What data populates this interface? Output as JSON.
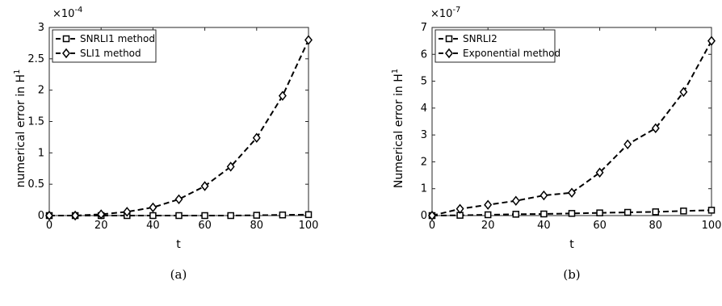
{
  "chart_data": [
    {
      "type": "line",
      "caption": "(a)",
      "xlabel": "t",
      "ylabel": "numerical error in H",
      "ylabel_superscript": "1",
      "exponent_label": "×10",
      "exponent_power": "-4",
      "xlim": [
        0,
        100
      ],
      "ylim": [
        0,
        3
      ],
      "xticks": [
        0,
        20,
        40,
        60,
        80,
        100
      ],
      "xtick_labels": [
        "0",
        "20",
        "40",
        "60",
        "80",
        "100"
      ],
      "yticks": [
        0,
        0.5,
        1,
        1.5,
        2,
        2.5,
        3
      ],
      "ytick_labels": [
        "0",
        "0.5",
        "1",
        "1.5",
        "2",
        "2.5",
        "3"
      ],
      "grid": false,
      "legend_position": "top-left",
      "x": [
        0,
        10,
        20,
        30,
        40,
        50,
        60,
        70,
        80,
        90,
        100
      ],
      "series": [
        {
          "name": "SNRLI1 method",
          "marker": "square",
          "line_style": "dashed",
          "values": [
            0,
            0,
            0,
            0,
            0,
            0,
            0,
            0,
            0.005,
            0.01,
            0.015
          ]
        },
        {
          "name": "SLI1 method",
          "marker": "diamond",
          "line_style": "dashed",
          "values": [
            0,
            0,
            0.02,
            0.06,
            0.13,
            0.26,
            0.47,
            0.78,
            1.24,
            1.91,
            2.8
          ]
        }
      ]
    },
    {
      "type": "line",
      "caption": "(b)",
      "xlabel": "t",
      "ylabel": "Numerical error in H",
      "ylabel_superscript": "1",
      "exponent_label": "×10",
      "exponent_power": "-7",
      "xlim": [
        0,
        100
      ],
      "ylim": [
        0,
        7
      ],
      "xticks": [
        0,
        20,
        40,
        60,
        80,
        100
      ],
      "xtick_labels": [
        "0",
        "20",
        "40",
        "60",
        "80",
        "100"
      ],
      "yticks": [
        0,
        1,
        2,
        3,
        4,
        5,
        6,
        7
      ],
      "ytick_labels": [
        "0",
        "1",
        "2",
        "3",
        "4",
        "5",
        "6",
        "7"
      ],
      "grid": false,
      "legend_position": "top-left",
      "x": [
        0,
        10,
        20,
        30,
        40,
        50,
        60,
        70,
        80,
        90,
        100
      ],
      "series": [
        {
          "name": "SNRLI2",
          "marker": "square",
          "line_style": "dashed",
          "values": [
            0,
            0.01,
            0.03,
            0.05,
            0.06,
            0.08,
            0.1,
            0.12,
            0.14,
            0.17,
            0.2
          ]
        },
        {
          "name": "Exponential method",
          "marker": "diamond",
          "line_style": "dashed",
          "values": [
            0,
            0.25,
            0.4,
            0.55,
            0.75,
            0.85,
            1.6,
            2.65,
            3.25,
            4.6,
            6.5
          ]
        }
      ]
    }
  ]
}
